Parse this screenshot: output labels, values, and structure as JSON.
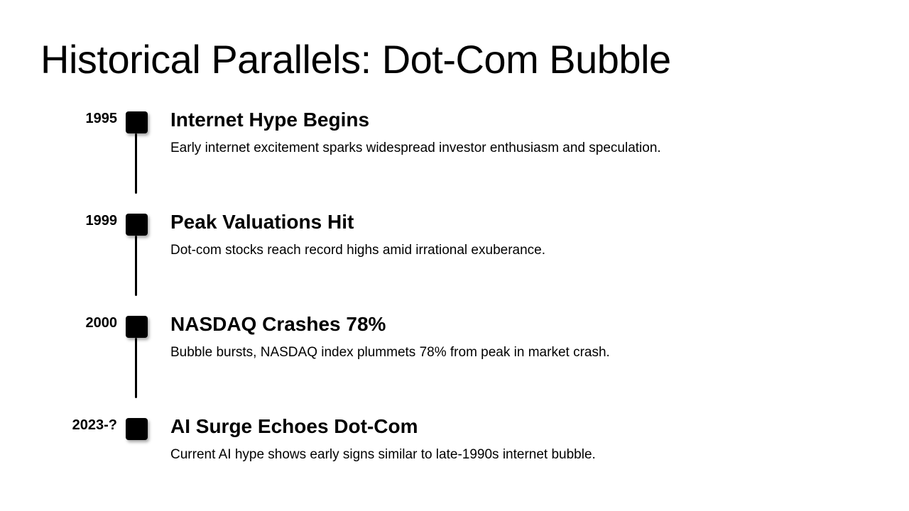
{
  "slide": {
    "title": "Historical Parallels: Dot-Com Bubble",
    "background_color": "#ffffff",
    "text_color": "#000000"
  },
  "timeline": {
    "marker_color": "#000000",
    "connector_color": "#000000",
    "events": [
      {
        "year": "1995",
        "title": "Internet Hype Begins",
        "description": "Early internet excitement sparks widespread investor enthusiasm and speculation."
      },
      {
        "year": "1999",
        "title": "Peak Valuations Hit",
        "description": "Dot-com stocks reach record highs amid irrational exuberance."
      },
      {
        "year": "2000",
        "title": "NASDAQ Crashes 78%",
        "description": "Bubble bursts, NASDAQ index plummets 78% from peak in market crash."
      },
      {
        "year": "2023-?",
        "title": "AI Surge Echoes Dot-Com",
        "description": "Current AI hype shows early signs similar to late-1990s internet bubble."
      }
    ]
  }
}
